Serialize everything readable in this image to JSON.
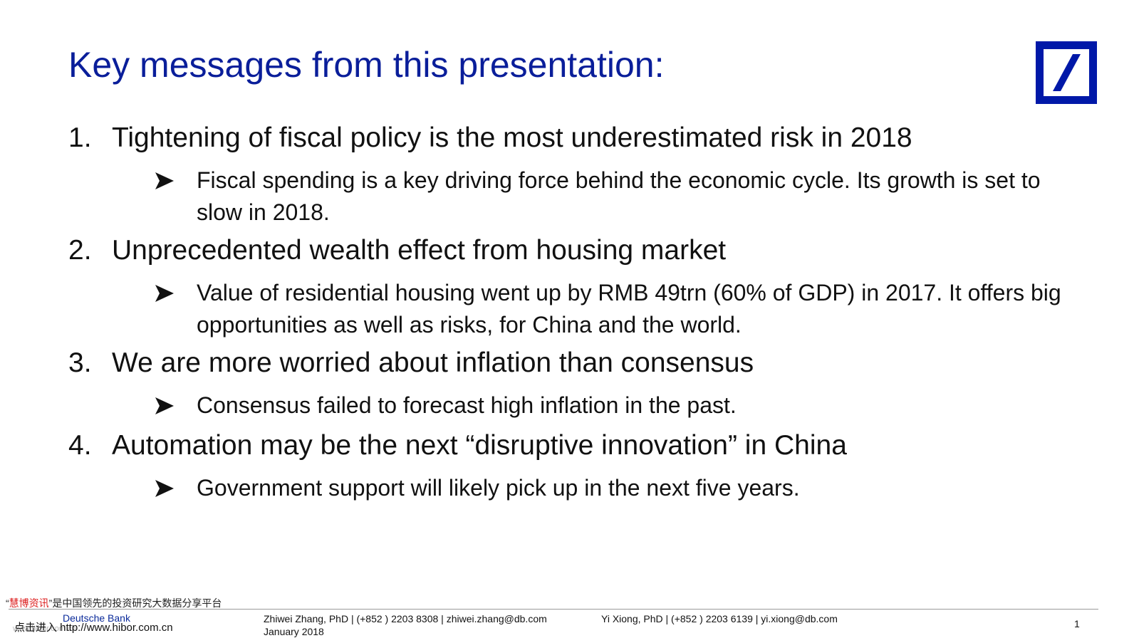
{
  "slide": {
    "title": "Key messages from this presentation:",
    "points": [
      {
        "number": "1.",
        "text": "Tightening of fiscal policy is the most underestimated risk in 2018",
        "sub": "Fiscal spending is a key driving force behind the economic cycle. Its growth is set to slow in 2018."
      },
      {
        "number": "2.",
        "text": "Unprecedented wealth effect from housing market",
        "sub": "Value of residential housing went up by RMB 49trn (60% of GDP) in 2017. It offers big opportunities as well as risks, for China and the world."
      },
      {
        "number": "3.",
        "text": "We are more worried about inflation than consensus",
        "sub": "Consensus failed to forecast high inflation in the past."
      },
      {
        "number": "4.",
        "text": "Automation may be the next “disruptive innovation” in China",
        "sub": "Government support will likely pick up in the next five years."
      }
    ]
  },
  "footer": {
    "watermark_quote_open": "“",
    "watermark_brand": "慧博资讯",
    "watermark_rest": "”是中国领先的投资研究大数据分享平台",
    "watermark_link": "点击进入 http://www.hibor.com.cn",
    "watermark_small": "www.hibor.com.cn",
    "bank_name": "Deutsche Bank",
    "author1": "Zhiwei Zhang, PhD | (+852 ) 2203 8308 | zhiwei.zhang@db.com",
    "date": "January 2018",
    "author2": "Yi Xiong, PhD | (+852 ) 2203 6139 | yi.xiong@db.com",
    "page_number": "1"
  },
  "colors": {
    "title": "#0a1e9a",
    "logo": "#0018a8"
  },
  "icons": {
    "logo": "deutsche-bank-logo",
    "bullet": "arrowhead-bullet-icon"
  }
}
